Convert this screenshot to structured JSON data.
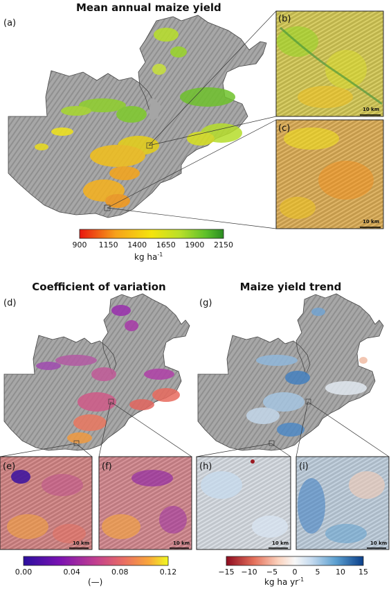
{
  "panel_a": {
    "title": "Mean annual maize yield",
    "label": "(a)",
    "inset_b_label": "(b)",
    "inset_c_label": "(c)",
    "scale_text": "10 km",
    "colorbar": {
      "ticks": [
        "900",
        "1150",
        "1400",
        "1650",
        "1900",
        "2150"
      ],
      "unit_main": "kg ha",
      "unit_sup": "-1",
      "colors": [
        "#e8160f",
        "#f7a11a",
        "#f4e40d",
        "#b8df2a",
        "#5cbf2a",
        "#2a8c22"
      ]
    }
  },
  "panel_d": {
    "title": "Coefficient of variation",
    "label": "(d)",
    "inset_e_label": "(e)",
    "inset_f_label": "(f)",
    "scale_text": "10 km",
    "colorbar": {
      "ticks": [
        "0.00",
        "0.04",
        "0.08",
        "0.12"
      ],
      "unit": "(—)",
      "colors": [
        "#2b0f9e",
        "#7a12b2",
        "#c23f8f",
        "#ea6f62",
        "#f9a83a",
        "#f0f921"
      ]
    }
  },
  "panel_g": {
    "title": "Maize yield trend",
    "label": "(g)",
    "inset_h_label": "(h)",
    "inset_i_label": "(i)",
    "scale_text": "10 km",
    "colorbar": {
      "ticks": [
        "−15",
        "−10",
        "−5",
        "0",
        "5",
        "10",
        "15"
      ],
      "unit_main": "kg ha yr",
      "unit_sup": "-1",
      "colors": [
        "#8e0b1f",
        "#e36f5a",
        "#fbd2bd",
        "#f7f7f7",
        "#c6dbef",
        "#5b9fd0",
        "#0b3f8a"
      ]
    }
  }
}
